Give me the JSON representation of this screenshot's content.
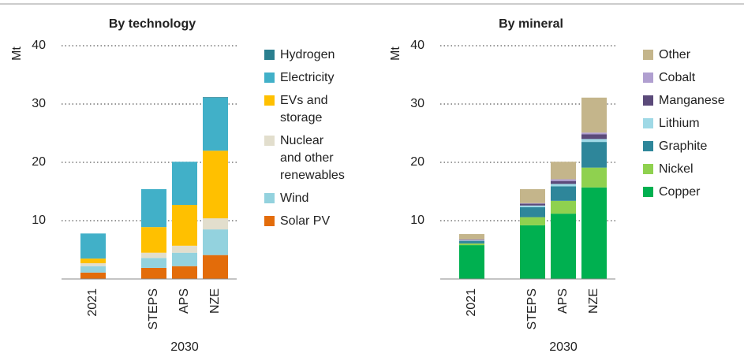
{
  "chart_data": [
    {
      "type": "stacked_bar",
      "title": "By technology",
      "ylabel": "Mt",
      "xlabel": "2030",
      "categories": [
        "2021",
        "STEPS",
        "APS",
        "NZE"
      ],
      "ylim": [
        0,
        40
      ],
      "yticks": [
        10,
        20,
        30,
        40
      ],
      "grid": true,
      "series": [
        {
          "name": "Solar PV",
          "color": "#e36c0a",
          "values": [
            1.1,
            1.9,
            2.2,
            4.1
          ]
        },
        {
          "name": "Wind",
          "color": "#93d2de",
          "values": [
            1.1,
            1.7,
            2.3,
            4.4
          ]
        },
        {
          "name": "Nuclear and other renewables",
          "color": "#e2decd",
          "values": [
            0.5,
            0.9,
            1.2,
            1.9
          ]
        },
        {
          "name": "EVs and storage",
          "color": "#ffc000",
          "values": [
            0.8,
            4.4,
            7.0,
            11.6
          ]
        },
        {
          "name": "Electricity",
          "color": "#41b0c8",
          "values": [
            4.3,
            6.5,
            7.4,
            9.1
          ]
        },
        {
          "name": "Hydrogen",
          "color": "#2a7f8f",
          "values": [
            0,
            0,
            0,
            0.1
          ]
        }
      ]
    },
    {
      "type": "stacked_bar",
      "title": "By mineral",
      "ylabel": "Mt",
      "xlabel": "2030",
      "categories": [
        "2021",
        "STEPS",
        "APS",
        "NZE"
      ],
      "ylim": [
        0,
        40
      ],
      "yticks": [
        10,
        20,
        30,
        40
      ],
      "grid": true,
      "series": [
        {
          "name": "Copper",
          "color": "#00b050",
          "values": [
            5.8,
            9.2,
            11.2,
            15.7
          ]
        },
        {
          "name": "Nickel",
          "color": "#8fd14f",
          "values": [
            0.3,
            1.4,
            2.2,
            3.4
          ]
        },
        {
          "name": "Graphite",
          "color": "#2e869a",
          "values": [
            0.4,
            1.7,
            2.5,
            4.4
          ]
        },
        {
          "name": "Lithium",
          "color": "#9fd9e6",
          "values": [
            0.1,
            0.3,
            0.4,
            0.5
          ]
        },
        {
          "name": "Manganese",
          "color": "#5b4a7a",
          "values": [
            0.1,
            0.3,
            0.5,
            0.8
          ]
        },
        {
          "name": "Cobalt",
          "color": "#b09fd0",
          "values": [
            0.1,
            0.1,
            0.3,
            0.3
          ]
        },
        {
          "name": "Other",
          "color": "#c4b58b",
          "values": [
            0.9,
            2.4,
            3.0,
            6.0
          ]
        }
      ]
    }
  ]
}
